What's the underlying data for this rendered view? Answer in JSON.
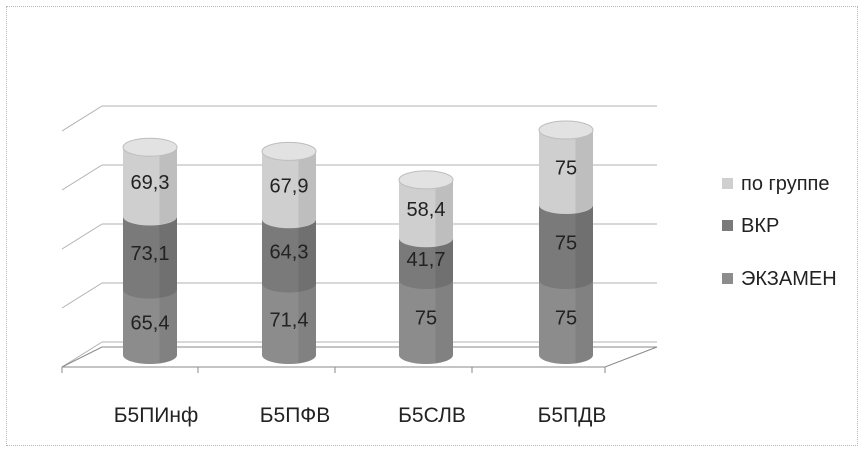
{
  "chart_data": {
    "type": "bar",
    "stacked": true,
    "style": "3d-cylinder",
    "categories": [
      "Б5ПИнф",
      "Б5ПФВ",
      "Б5СЛВ",
      "Б5ПДВ"
    ],
    "series": [
      {
        "name": "ЭКЗАМЕН",
        "values": [
          65.4,
          71.4,
          75,
          75
        ],
        "labels": [
          "65,4",
          "71,4",
          "75",
          "75"
        ],
        "color": "#8c8c8c"
      },
      {
        "name": "ВКР",
        "values": [
          73.1,
          64.3,
          41.7,
          75
        ],
        "labels": [
          "73,1",
          "64,3",
          "41,7",
          "75"
        ],
        "color": "#7a7a7a"
      },
      {
        "name": "по группе",
        "values": [
          69.3,
          67.9,
          58.4,
          75
        ],
        "labels": [
          "69,3",
          "67,9",
          "58,4",
          "75"
        ],
        "color": "#cfcfcf"
      }
    ],
    "legend_order": [
      "по группе",
      "ВКР",
      "ЭКЗАМЕН"
    ],
    "legend_position": "right",
    "ylim": [
      0,
      250
    ],
    "grid": true,
    "y_tick_labels": false
  }
}
